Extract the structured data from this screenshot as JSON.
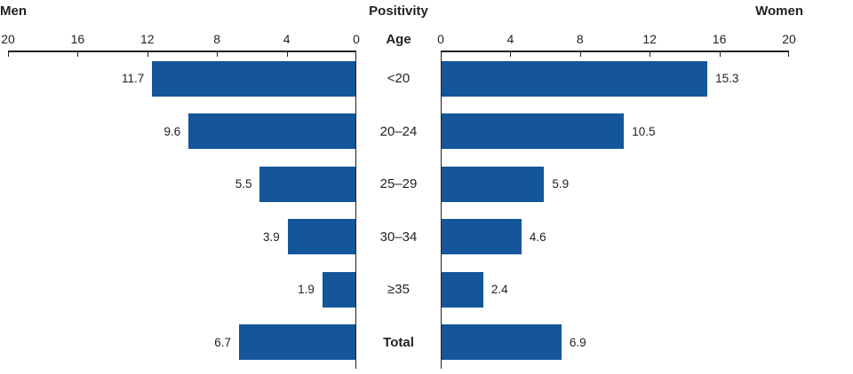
{
  "title": "Positivity",
  "men_header": "Men",
  "women_header": "Women",
  "age_header": "Age",
  "colors": {
    "bar": "#15569B",
    "axis": "#231F20",
    "text": "#231F20",
    "background": "#FFFFFF"
  },
  "axes": {
    "left_ticks": [
      "20",
      "16",
      "12",
      "8",
      "4",
      "0"
    ],
    "right_ticks": [
      "0",
      "4",
      "8",
      "12",
      "16",
      "20"
    ]
  },
  "chart_data": {
    "type": "bar",
    "subtype": "butterfly-horizontal",
    "title": "Positivity",
    "center_axis_label": "Age",
    "categories": [
      "<20",
      "20–24",
      "25–29",
      "30–34",
      "≥35",
      "Total"
    ],
    "series": [
      {
        "name": "Men",
        "side": "left",
        "values": [
          11.7,
          9.6,
          5.5,
          3.9,
          1.9,
          6.7
        ]
      },
      {
        "name": "Women",
        "side": "right",
        "values": [
          15.3,
          10.5,
          5.9,
          4.6,
          2.4,
          6.9
        ]
      }
    ],
    "xlim": [
      0,
      20
    ],
    "tick_interval": 4,
    "grid": false,
    "value_labels": "outside-bar-end",
    "legend_position": "top-corners"
  }
}
